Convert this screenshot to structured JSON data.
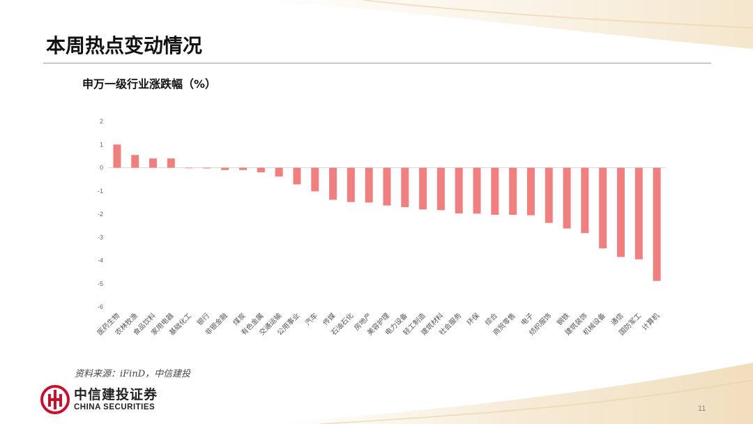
{
  "slide": {
    "title": "本周热点变动情况",
    "source": "资料来源：iFinD，中信建投",
    "page_number": "11"
  },
  "brand": {
    "name_cn": "中信建投证券",
    "name_en": "CHINA SECURITIES",
    "color": "#c8102e"
  },
  "chart_data": {
    "type": "bar",
    "title": "申万一级行业涨跌幅（%）",
    "xlabel": "",
    "ylabel": "",
    "categories": [
      "医药生物",
      "农林牧渔",
      "食品饮料",
      "家用电器",
      "基础化工",
      "银行",
      "非银金融",
      "煤炭",
      "有色金属",
      "交通运输",
      "公用事业",
      "汽车",
      "传媒",
      "石油石化",
      "房地产",
      "美容护理",
      "电力设备",
      "轻工制造",
      "建筑材料",
      "社会服务",
      "环保",
      "综合",
      "商贸零售",
      "电子",
      "纺织服饰",
      "钢铁",
      "建筑装饰",
      "机械设备",
      "通信",
      "国防军工",
      "计算机"
    ],
    "values": [
      1.0,
      0.55,
      0.4,
      0.4,
      -0.02,
      -0.03,
      -0.1,
      -0.1,
      -0.2,
      -0.38,
      -0.72,
      -1.02,
      -1.38,
      -1.48,
      -1.5,
      -1.63,
      -1.7,
      -1.8,
      -1.83,
      -1.97,
      -1.98,
      -2.03,
      -2.03,
      -2.05,
      -2.38,
      -2.62,
      -2.82,
      -3.48,
      -3.85,
      -3.95,
      -4.88
    ],
    "ylim": [
      -6,
      2
    ],
    "yticks": [
      2,
      1,
      0,
      -1,
      -2,
      -3,
      -4,
      -5,
      -6
    ],
    "bar_color": "#f08080",
    "grid": false,
    "legend": "none"
  }
}
